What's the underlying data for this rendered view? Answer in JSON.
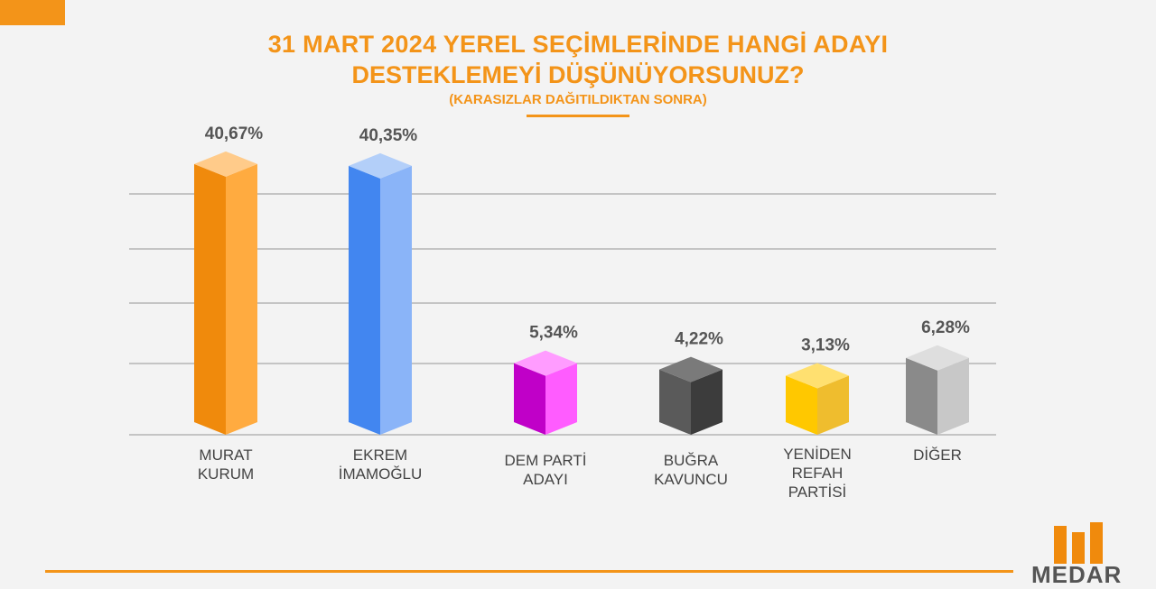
{
  "chart_data": {
    "type": "bar",
    "title": "31 MART 2024 YEREL SEÇİMLERİNDE HANGİ ADAYI",
    "title_line2": "DESTEKLEMEYİ DÜŞÜNÜYORSUNUZ?",
    "subtitle": "(KARASIZLAR DAĞITILDIKTAN SONRA)",
    "categories": [
      "MURAT KURUM",
      "EKREM İMAMOĞLU",
      "DEM PARTİ ADAYI",
      "BUĞRA KAVUNCU",
      "YENİDEN REFAH PARTİSİ",
      "DİĞER"
    ],
    "category_lines": [
      [
        "MURAT",
        "KURUM"
      ],
      [
        "EKREM",
        "İMAMOĞLU"
      ],
      [
        "DEM PARTİ",
        "ADAYI"
      ],
      [
        "BUĞRA",
        "KAVUNCU"
      ],
      [
        "YENİDEN",
        "REFAH",
        "PARTİSİ"
      ],
      [
        "DİĞER"
      ]
    ],
    "values": [
      40.67,
      40.35,
      5.34,
      4.22,
      3.13,
      6.28
    ],
    "data_labels": [
      "40,67%",
      "40,35%",
      "5,34%",
      "4,22%",
      "3,13%",
      "6,28%"
    ],
    "colors": [
      {
        "left": "#f08a0c",
        "right": "#ffab40",
        "top": "#ffcb8a"
      },
      {
        "left": "#4286f0",
        "right": "#8ab4f8",
        "top": "#b3cff9"
      },
      {
        "left": "#c000c8",
        "right": "#ff5cff",
        "top": "#ff9cff"
      },
      {
        "left": "#5a5a5a",
        "right": "#3c3c3c",
        "top": "#7a7a7a"
      },
      {
        "left": "#ffc800",
        "right": "#efbd2e",
        "top": "#ffe070"
      },
      {
        "left": "#8a8a8a",
        "right": "#c8c8c8",
        "top": "#dedede"
      }
    ],
    "unit": "%",
    "grid": true,
    "legend": "none"
  },
  "brand": {
    "name": "MEDAR",
    "color": "#f39419"
  }
}
